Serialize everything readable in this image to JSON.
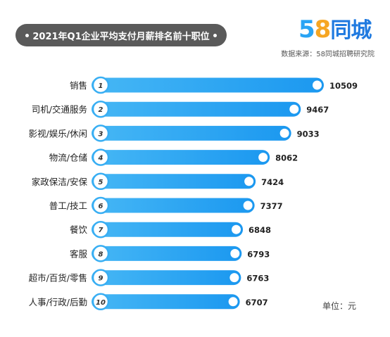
{
  "header": {
    "title": "2021年Q1企业平均支付月薪排名前十职位",
    "source": "数据来源：58同城招聘研究院",
    "unit": "单位：元"
  },
  "logo": {
    "num5": "5",
    "num8": "8",
    "text": "同城"
  },
  "colors": {
    "bar_start": "#46b7f5",
    "bar_end": "#1b98f0",
    "badge_ring": "#38aef3",
    "title_bg": "#5a5a5a",
    "value_text": "#222222"
  },
  "chart_data": {
    "type": "bar",
    "orientation": "horizontal",
    "categories": [
      "销售",
      "司机/交通服务",
      "影视/娱乐/休闲",
      "物流/仓储",
      "家政保洁/安保",
      "普工/技工",
      "餐饮",
      "客服",
      "超市/百货/零售",
      "人事/行政/后勤"
    ],
    "ranks": [
      "1",
      "2",
      "3",
      "4",
      "5",
      "6",
      "7",
      "8",
      "9",
      "10"
    ],
    "values": [
      10509,
      9467,
      9033,
      8062,
      7424,
      7377,
      6848,
      6793,
      6763,
      6707
    ],
    "value_labels": [
      "10509",
      "9467",
      "9033",
      "8062",
      "7424",
      "7377",
      "6848",
      "6793",
      "6763",
      "6707"
    ],
    "title": "2021年Q1企业平均支付月薪排名前十职位",
    "grid": false,
    "legend": "none"
  }
}
